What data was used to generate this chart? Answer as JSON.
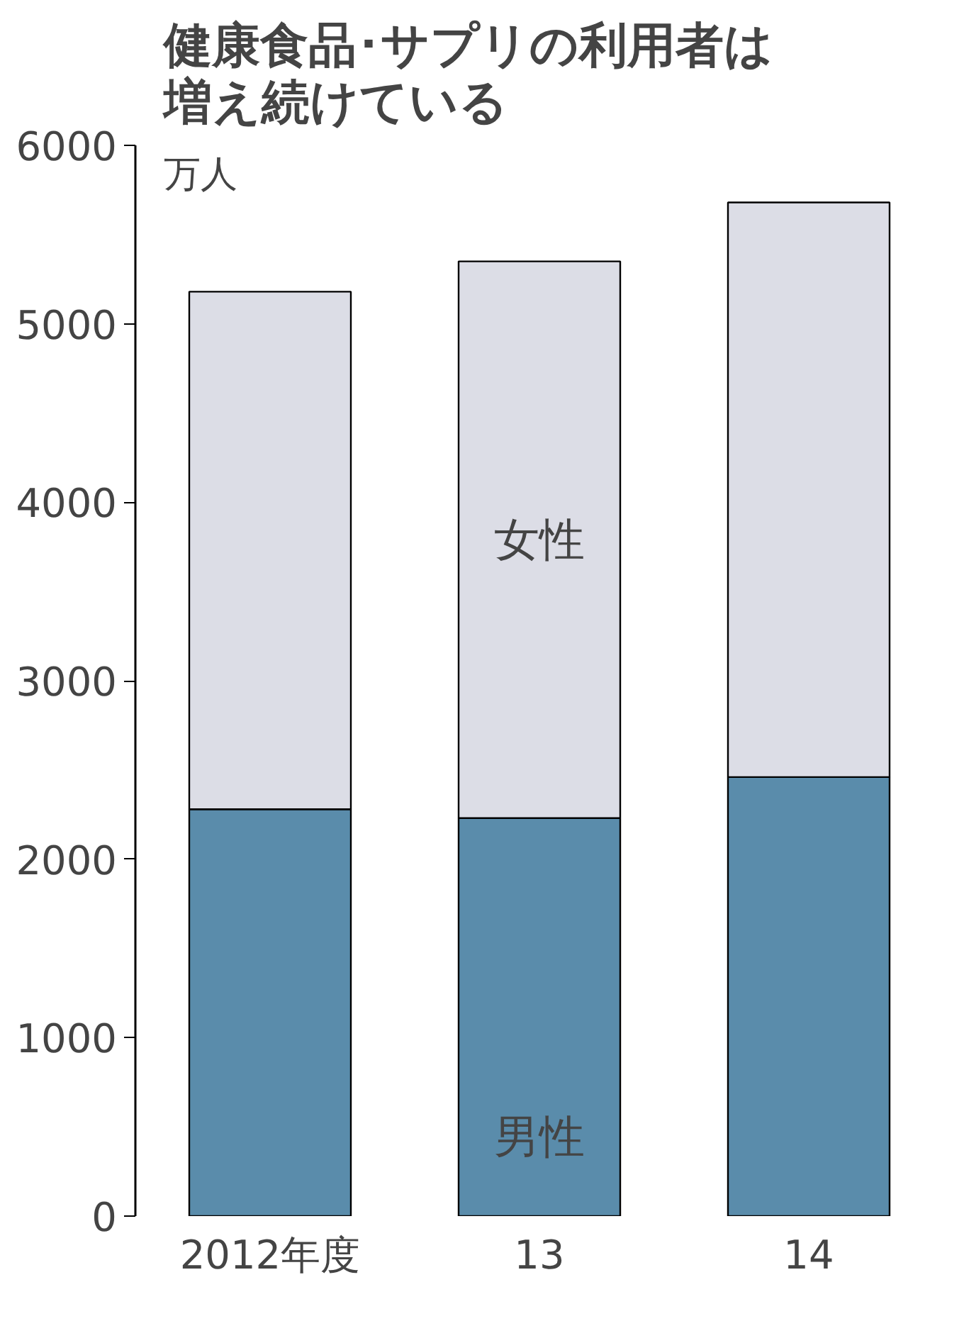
{
  "chart_data": {
    "type": "bar",
    "title": "健康食品･サプリの利用者は増え続けている",
    "ylabel": "万人",
    "categories": [
      "2012年度",
      "13",
      "14"
    ],
    "stacked": true,
    "series": [
      {
        "name": "男性",
        "color": "#5a8cab",
        "values": [
          2280,
          2230,
          2460
        ]
      },
      {
        "name": "女性",
        "color": "#dcdde6",
        "values": [
          2900,
          3120,
          3220
        ]
      }
    ],
    "ylim": [
      0,
      6000
    ],
    "yticks": [
      0,
      1000,
      2000,
      3000,
      4000,
      5000,
      6000
    ],
    "grid": false
  }
}
